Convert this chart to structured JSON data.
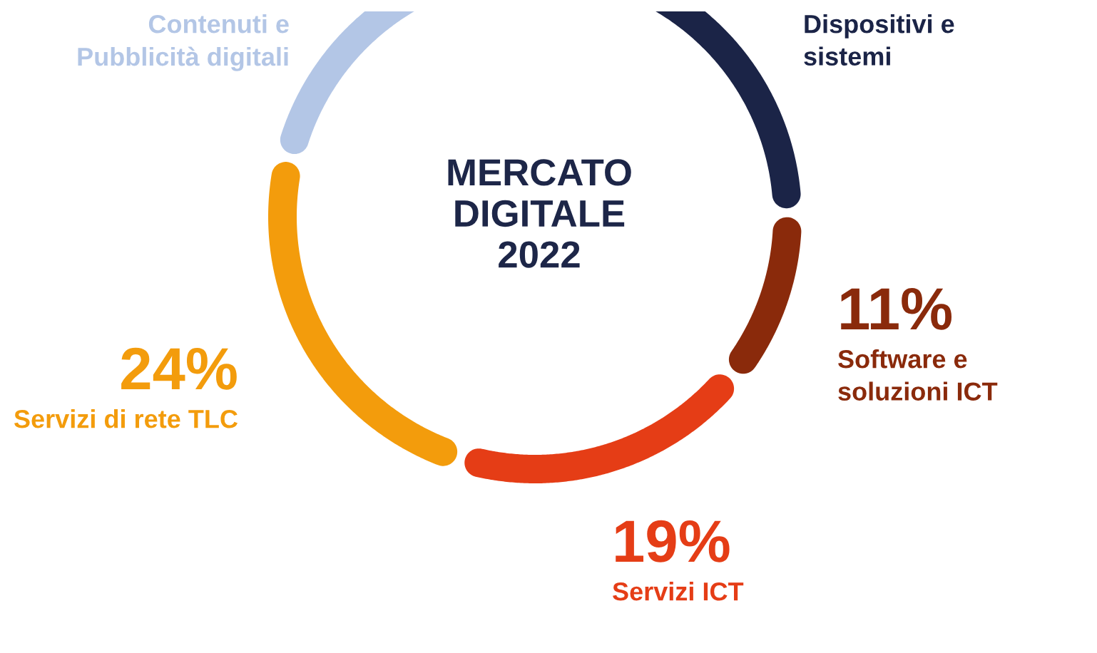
{
  "chart_data": {
    "type": "donut",
    "title": "MERCATO\nDIGITALE\n2022",
    "categories": [
      "Dispositivi e\nsistemi",
      "Software e\nsoluzioni ICT",
      "Servizi ICT",
      "Servizi di rete TLC",
      "Contenuti e\nPubblicità digitali"
    ],
    "values": [
      26,
      11,
      19,
      24,
      20
    ],
    "colors": [
      "#1b2447",
      "#8a2a0b",
      "#e53d16",
      "#f39c0c",
      "#b3c6e6"
    ],
    "value_labels": [
      null,
      "11%",
      "19%",
      "24%",
      null
    ]
  }
}
